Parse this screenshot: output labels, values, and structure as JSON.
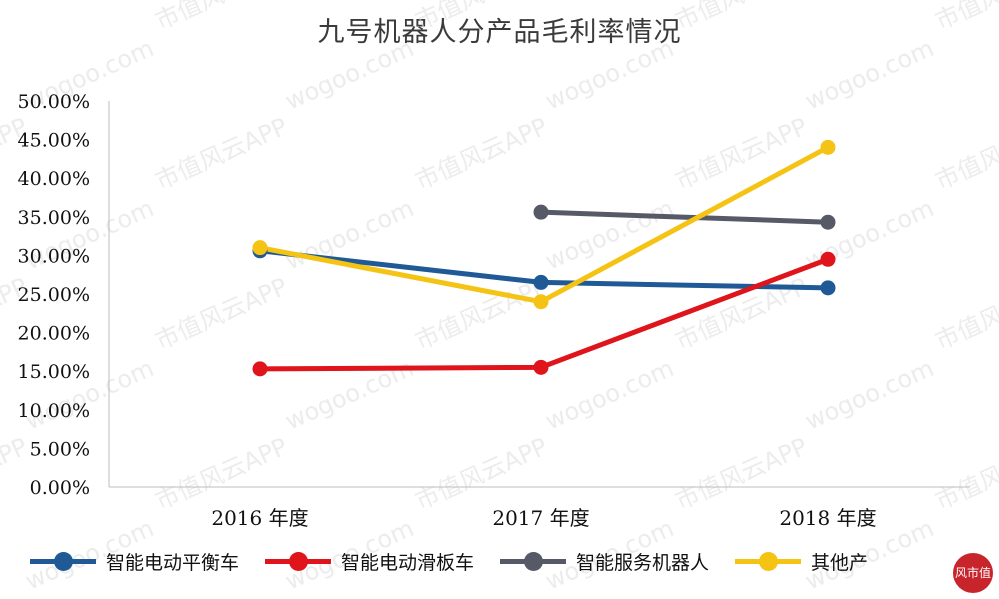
{
  "chart_data": {
    "type": "line",
    "title": "九号机器人分产品毛利率情况",
    "categories": [
      "2016 年度",
      "2017 年度",
      "2018 年度"
    ],
    "yticks": [
      "0.00%",
      "5.00%",
      "10.00%",
      "15.00%",
      "20.00%",
      "25.00%",
      "30.00%",
      "35.00%",
      "40.00%",
      "45.00%",
      "50.00%"
    ],
    "ylim": [
      0,
      0.5
    ],
    "series": [
      {
        "name": "智能电动平衡车",
        "color": "#1f5a96",
        "values": [
          0.306,
          0.265,
          0.258
        ]
      },
      {
        "name": "智能电动滑板车",
        "color": "#e0141b",
        "values": [
          0.153,
          0.155,
          0.295
        ]
      },
      {
        "name": "智能服务机器人",
        "color": "#555a66",
        "values": [
          null,
          0.356,
          0.343
        ]
      },
      {
        "name": "其他产",
        "color": "#f5c314",
        "values": [
          0.31,
          0.24,
          0.44
        ]
      }
    ],
    "grid": false,
    "legend_position": "bottom"
  },
  "watermark": {
    "text1": "市值风云APP",
    "text2": "wogoo.com"
  },
  "stamp": {
    "text": "风市值"
  }
}
